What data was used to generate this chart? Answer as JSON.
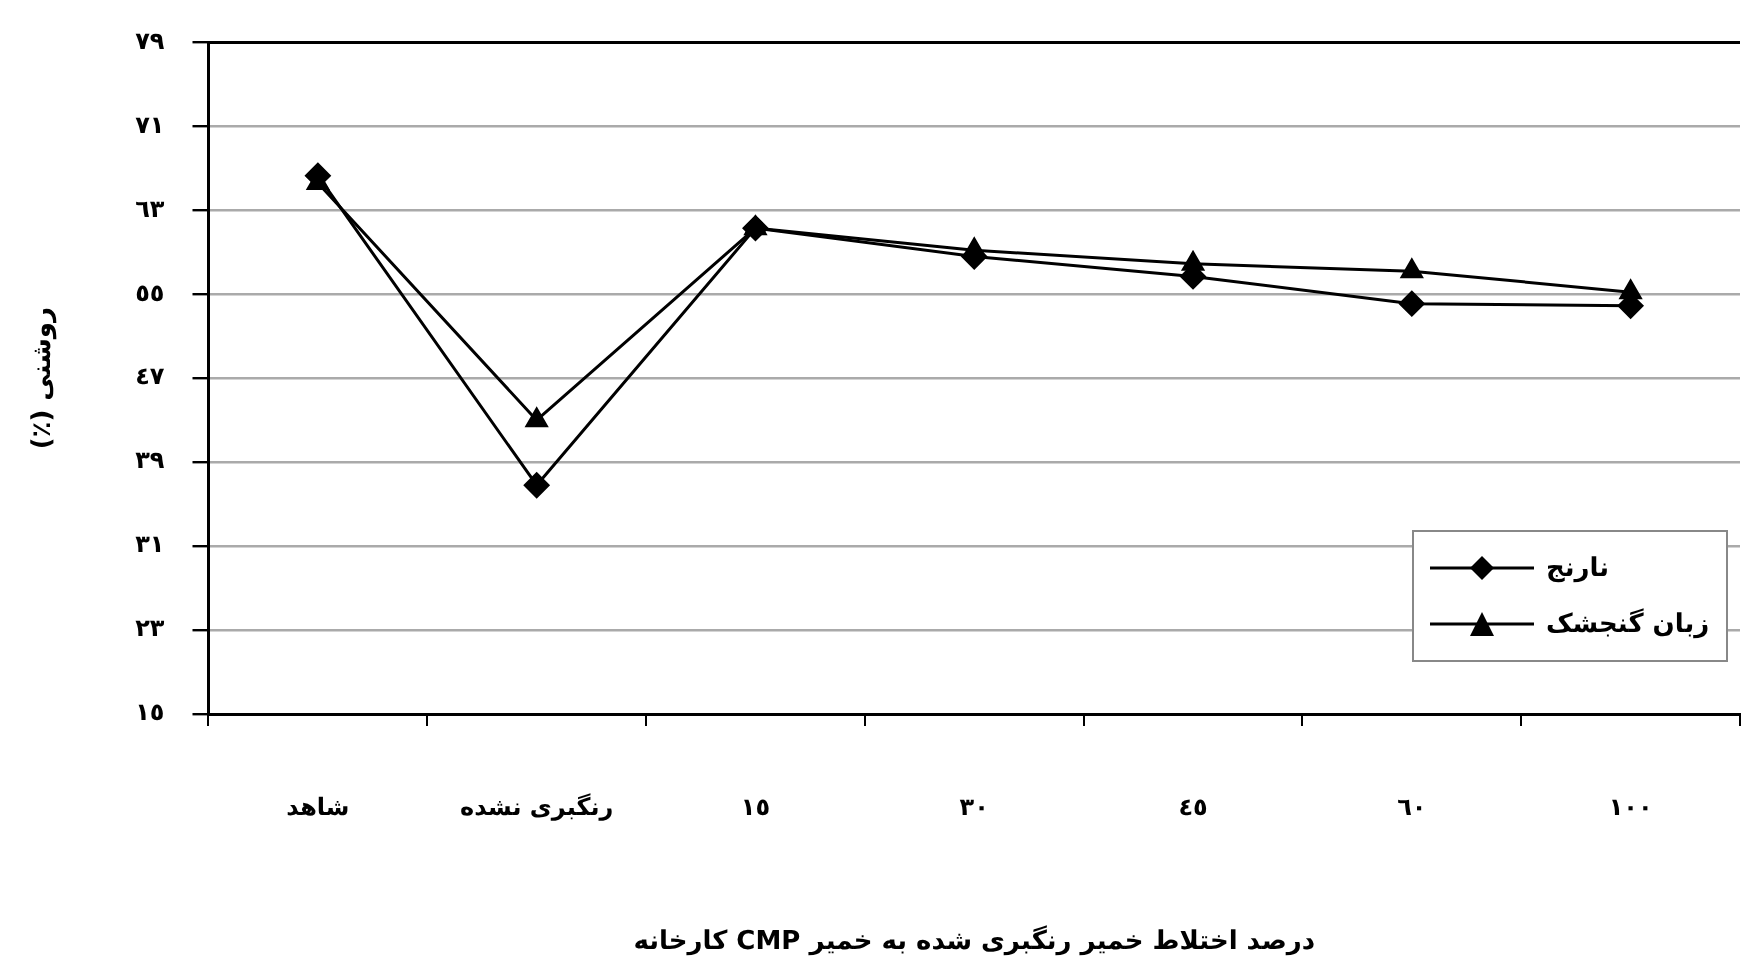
{
  "chart_data": {
    "type": "line",
    "xlabel": "درصد اختلاط خمیر رنگبری شده به خمیر CMP کارخانه",
    "ylabel": "روشنی (٪)",
    "categories": [
      "شاهد",
      "رنگبری نشده",
      "١٥",
      "٣٠",
      "٤٥",
      "٦٠",
      "١٠٠"
    ],
    "series": [
      {
        "name": "نارنج",
        "color": "#000000",
        "marker": "diamond",
        "values": [
          66.3,
          36.8,
          61.3,
          58.6,
          56.7,
          54.1,
          53.9
        ]
      },
      {
        "name": "زبان گنجشک",
        "color": "#000000",
        "marker": "triangle",
        "values": [
          65.6,
          43.0,
          61.3,
          59.2,
          57.9,
          57.2,
          55.2
        ]
      }
    ],
    "ylim": [
      15,
      79
    ],
    "yticks": [
      {
        "value": 15,
        "label": "١٥"
      },
      {
        "value": 23,
        "label": "٢٣"
      },
      {
        "value": 31,
        "label": "٣١"
      },
      {
        "value": 39,
        "label": "٣٩"
      },
      {
        "value": 47,
        "label": "٤٧"
      },
      {
        "value": 55,
        "label": "٥٥"
      },
      {
        "value": 63,
        "label": "٦٣"
      },
      {
        "value": 71,
        "label": "٧١"
      },
      {
        "value": 79,
        "label": "٧٩"
      }
    ],
    "grid": "y",
    "legend": "bottom right",
    "line_style": "solid"
  }
}
